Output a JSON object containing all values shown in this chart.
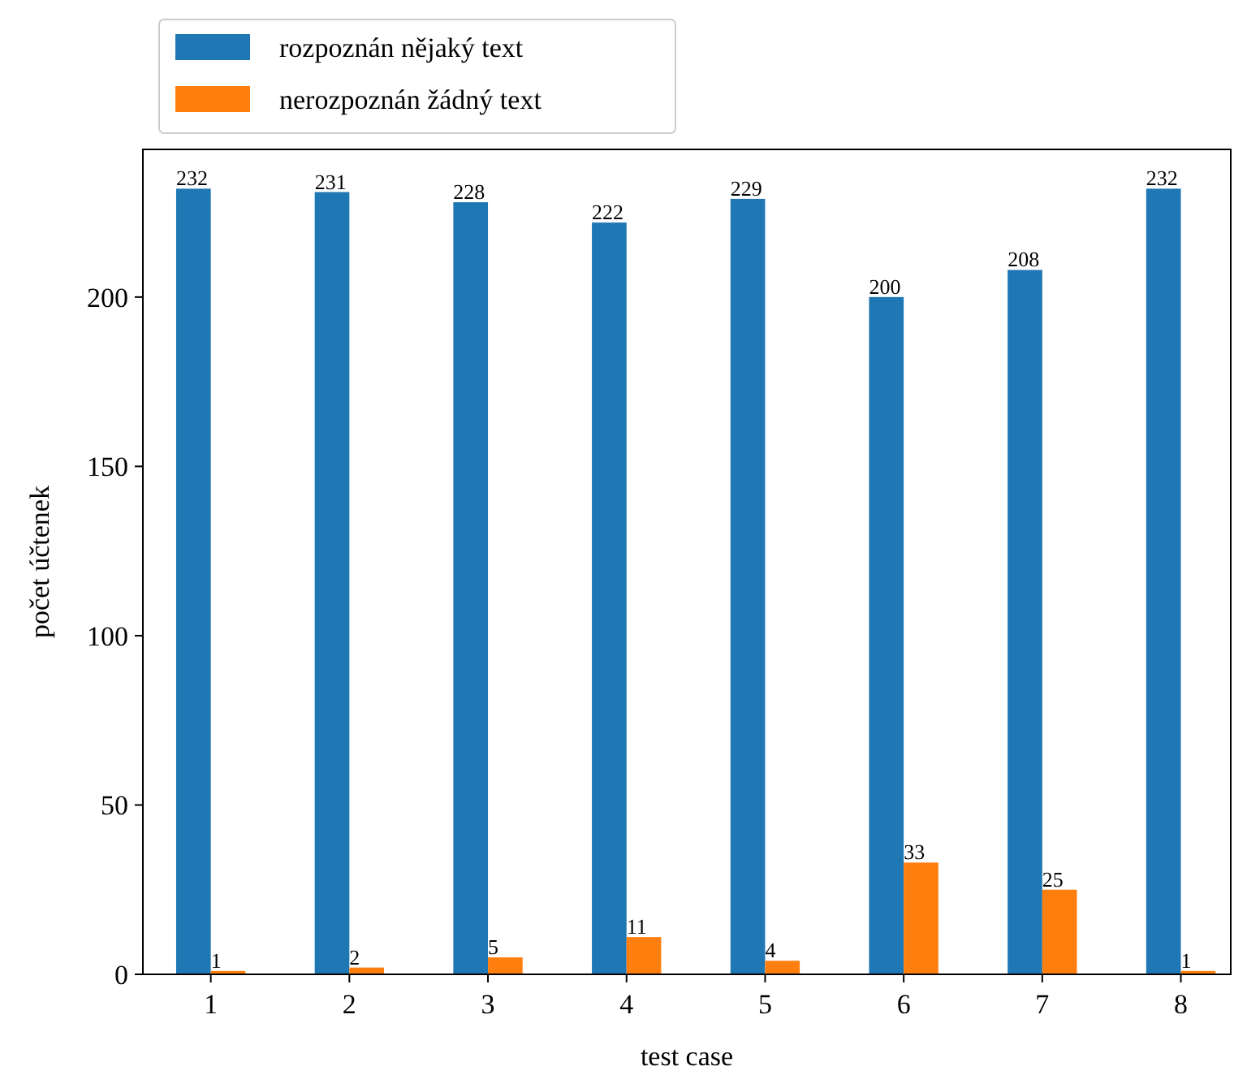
{
  "chart_data": {
    "type": "bar",
    "xlabel": "test case",
    "ylabel": "počet účtenek",
    "categories": [
      "1",
      "2",
      "3",
      "4",
      "5",
      "6",
      "7",
      "8"
    ],
    "series": [
      {
        "name": "rozpoznán nějaký text",
        "color": "#1f77b4",
        "values": [
          232,
          231,
          228,
          222,
          229,
          200,
          208,
          232
        ]
      },
      {
        "name": "nerozpoznán žádný text",
        "color": "#ff7f0e",
        "values": [
          1,
          2,
          5,
          11,
          4,
          33,
          25,
          1
        ]
      }
    ],
    "ylim": [
      0,
      243.6
    ],
    "yticks": [
      0,
      50,
      100,
      150,
      200
    ],
    "data_labels": true,
    "legend": "top left"
  }
}
